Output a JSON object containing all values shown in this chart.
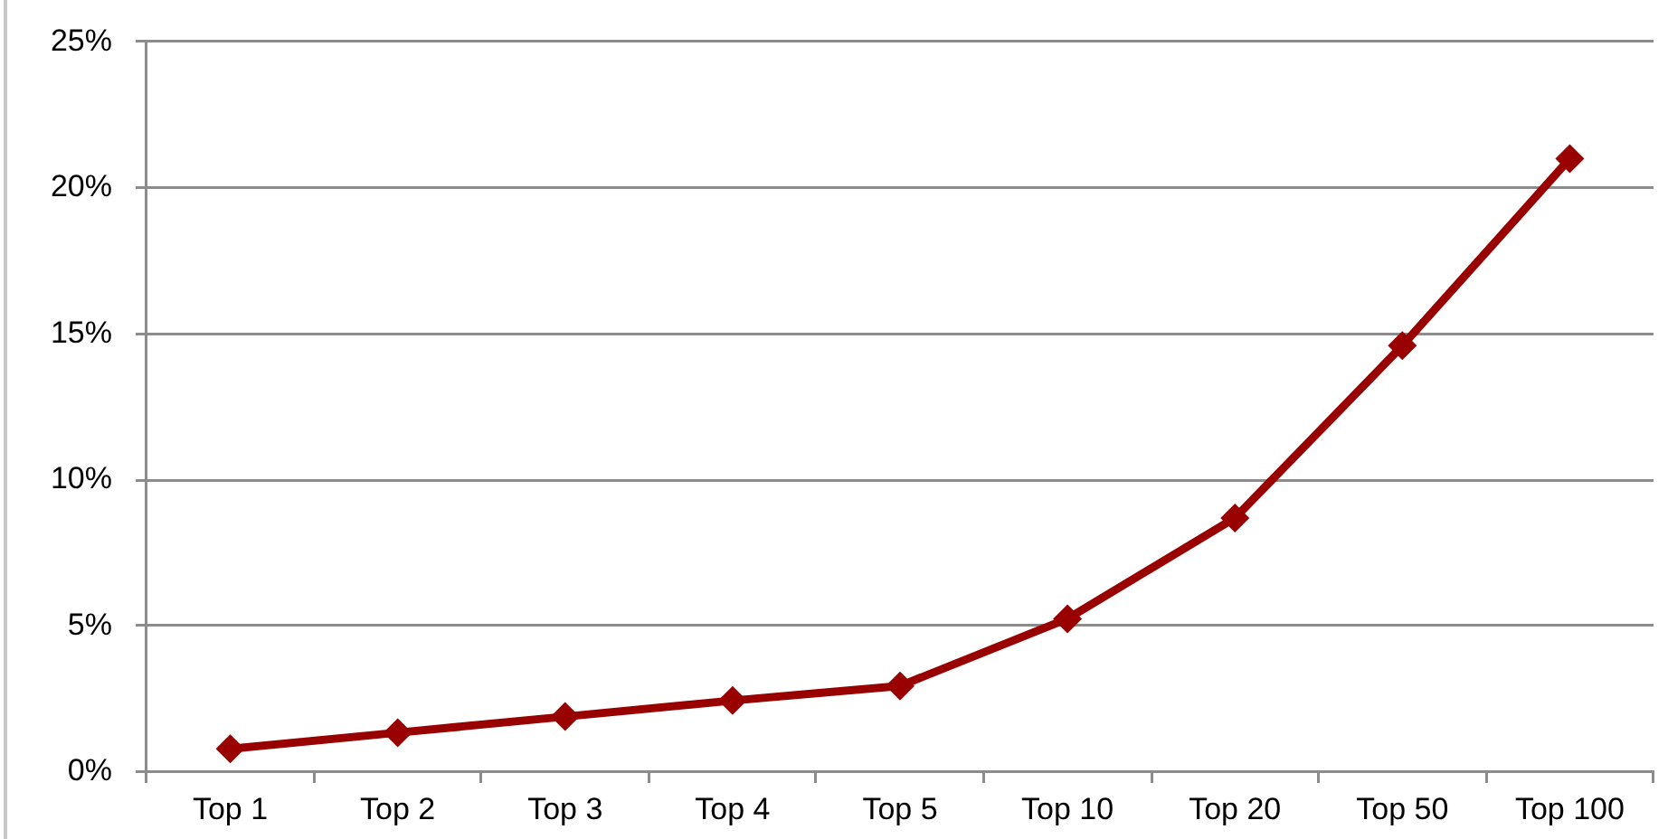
{
  "chart_data": {
    "type": "line",
    "categories": [
      "Top 1",
      "Top 2",
      "Top 3",
      "Top 4",
      "Top 5",
      "Top 10",
      "Top 20",
      "Top 50",
      "Top 100"
    ],
    "values": [
      0.8,
      1.35,
      1.9,
      2.45,
      2.95,
      5.25,
      8.7,
      14.6,
      21.0
    ],
    "color": "#990000",
    "ylim": [
      0,
      25
    ],
    "yticks": [
      {
        "value": 0,
        "label": "0%"
      },
      {
        "value": 5,
        "label": "5%"
      },
      {
        "value": 10,
        "label": "10%"
      },
      {
        "value": 15,
        "label": "15%"
      },
      {
        "value": 20,
        "label": "20%"
      },
      {
        "value": 25,
        "label": "25%"
      }
    ],
    "grid": "y",
    "marker": "diamond",
    "line_style": "solid"
  }
}
